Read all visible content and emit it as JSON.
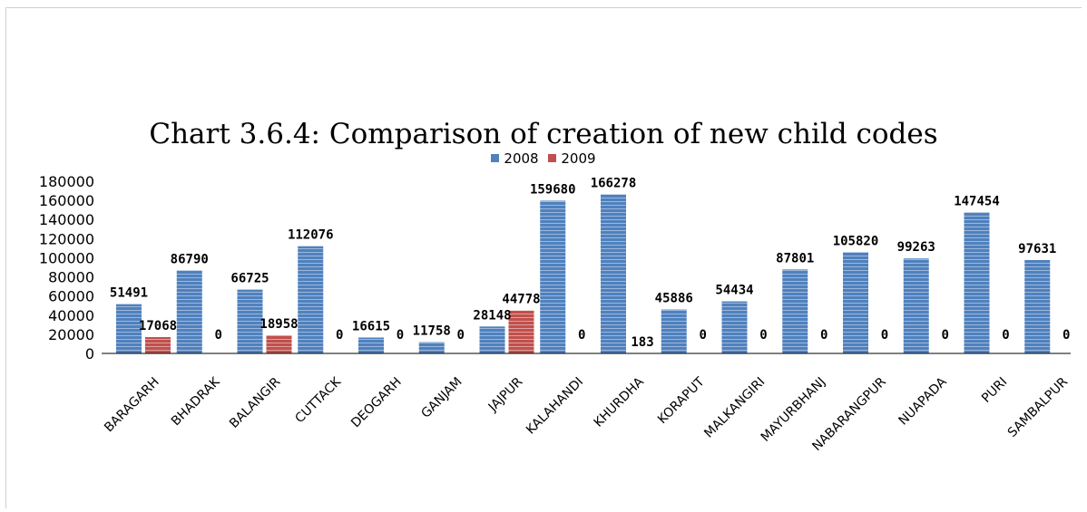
{
  "chart_data": {
    "type": "bar",
    "title": "Chart 3.6.4: Comparison of creation of new child codes",
    "xlabel": "",
    "ylabel": "",
    "categories": [
      "BARAGARH",
      "BHADRAK",
      "BALANGIR",
      "CUTTACK",
      "DEOGARH",
      "GANJAM",
      "JAJPUR",
      "KALAHANDI",
      "KHURDHA",
      "KORAPUT",
      "MALKANGIRI",
      "MAYURBHANJ",
      "NABARANGPUR",
      "NUAPADA",
      "PURI",
      "SAMBALPUR"
    ],
    "series": [
      {
        "name": "2008",
        "color": "#4f81bd",
        "values": [
          51491,
          86790,
          66725,
          112076,
          16615,
          11758,
          28148,
          159680,
          166278,
          45886,
          54434,
          87801,
          105820,
          99263,
          147454,
          97631
        ]
      },
      {
        "name": "2009",
        "color": "#c0504d",
        "values": [
          17068,
          0,
          18958,
          0,
          0,
          0,
          44778,
          0,
          183,
          0,
          0,
          0,
          0,
          0,
          0,
          0
        ]
      }
    ],
    "y_ticks": [
      0,
      20000,
      40000,
      60000,
      80000,
      100000,
      120000,
      140000,
      160000,
      180000
    ],
    "ylim": [
      0,
      180000
    ],
    "legend_position": "top-center",
    "grid": false
  }
}
